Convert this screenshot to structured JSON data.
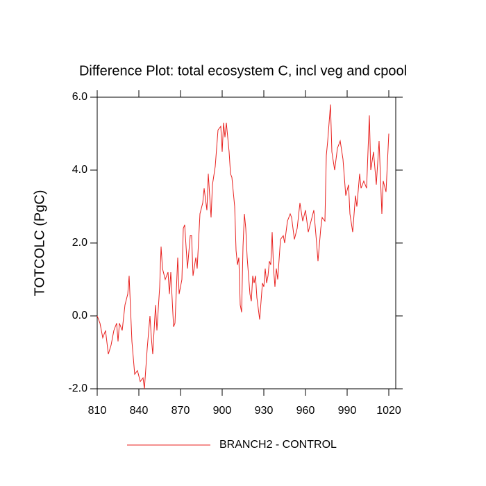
{
  "chart_data": {
    "type": "line",
    "title": "Difference Plot: total ecosystem C, incl veg and cpool",
    "y_label": "TOTCOLC  (PgC)",
    "x": [
      810,
      812,
      814,
      816,
      818,
      820,
      822,
      824,
      825,
      826,
      828,
      830,
      832,
      833,
      835,
      837,
      839,
      841,
      843,
      844,
      846,
      848,
      849,
      850,
      852,
      853,
      855,
      856,
      857,
      859,
      861,
      862,
      863,
      865,
      866,
      868,
      869,
      871,
      872,
      873,
      875,
      877,
      878,
      879,
      881,
      882,
      884,
      886,
      887,
      889,
      890,
      892,
      893,
      895,
      897,
      899,
      900,
      901,
      902,
      903,
      905,
      906,
      907,
      909,
      910,
      911,
      912,
      913,
      914,
      915,
      916,
      917,
      918,
      919,
      920,
      921,
      922,
      923,
      924,
      925,
      927,
      928,
      929,
      930,
      931,
      932,
      933,
      934,
      935,
      936,
      937,
      938,
      939,
      940,
      942,
      944,
      945,
      947,
      949,
      950,
      952,
      954,
      956,
      958,
      960,
      962,
      964,
      966,
      968,
      969,
      971,
      972,
      974,
      975,
      976,
      978,
      979,
      981,
      983,
      985,
      987,
      989,
      991,
      992,
      994,
      996,
      997,
      999,
      1000,
      1002,
      1004,
      1006,
      1007,
      1009,
      1011,
      1013,
      1015,
      1016,
      1018,
      1020
    ],
    "series": [
      {
        "name": "BRANCH2 - CONTROL",
        "color": "#e8201e",
        "values": [
          0.0,
          -0.2,
          -0.6,
          -0.4,
          -1.05,
          -0.8,
          -0.4,
          -0.2,
          -0.7,
          -0.2,
          -0.4,
          0.3,
          0.6,
          1.1,
          -0.7,
          -1.6,
          -1.5,
          -1.8,
          -1.7,
          -2.0,
          -0.9,
          0.0,
          -0.6,
          -1.05,
          0.3,
          -0.4,
          0.8,
          1.9,
          1.3,
          1.0,
          1.2,
          0.6,
          1.2,
          -0.3,
          -0.2,
          1.6,
          0.6,
          1.0,
          2.4,
          2.5,
          1.3,
          2.2,
          2.2,
          1.1,
          1.6,
          1.3,
          2.8,
          3.1,
          3.5,
          2.9,
          3.9,
          2.7,
          3.6,
          4.1,
          5.1,
          5.2,
          4.5,
          5.3,
          4.9,
          5.3,
          4.5,
          3.9,
          3.8,
          3.0,
          1.8,
          1.4,
          1.6,
          0.3,
          0.1,
          1.9,
          2.8,
          2.4,
          1.6,
          1.1,
          0.6,
          0.4,
          1.1,
          0.9,
          1.1,
          0.5,
          -0.1,
          0.4,
          0.9,
          0.8,
          1.3,
          0.9,
          1.1,
          1.5,
          1.4,
          2.3,
          1.3,
          0.8,
          1.3,
          1.0,
          2.1,
          2.2,
          2.0,
          2.6,
          2.8,
          2.7,
          2.1,
          2.4,
          3.1,
          2.6,
          2.9,
          2.3,
          2.6,
          2.9,
          2.0,
          1.5,
          2.4,
          2.7,
          2.6,
          4.4,
          4.8,
          5.8,
          4.5,
          4.0,
          4.6,
          4.8,
          4.3,
          3.3,
          3.6,
          2.8,
          2.3,
          3.3,
          3.0,
          3.9,
          3.5,
          3.7,
          3.5,
          5.5,
          4.0,
          4.5,
          3.6,
          4.8,
          2.8,
          3.7,
          3.4,
          5.0
        ]
      }
    ],
    "xlim": [
      810,
      1025
    ],
    "ylim": [
      -2,
      6
    ],
    "xticks": [
      810,
      840,
      870,
      900,
      930,
      960,
      990,
      1020
    ],
    "yticks": [
      {
        "value": -2,
        "label": "-2.0"
      },
      {
        "value": 0,
        "label": "0.0"
      },
      {
        "value": 2,
        "label": "2.0"
      },
      {
        "value": 4,
        "label": "4.0"
      },
      {
        "value": 6,
        "label": "6.0"
      }
    ]
  }
}
